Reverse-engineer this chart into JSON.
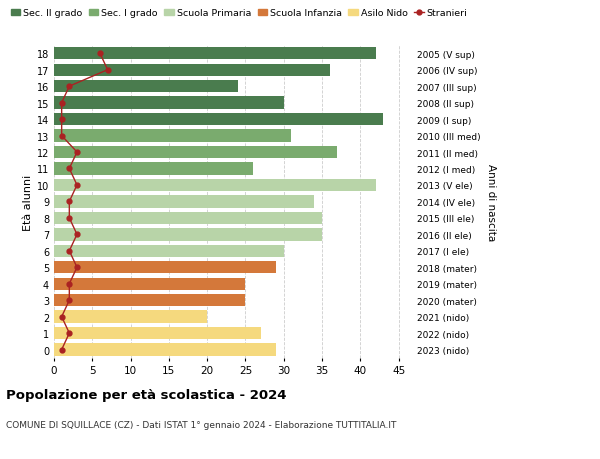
{
  "ages": [
    18,
    17,
    16,
    15,
    14,
    13,
    12,
    11,
    10,
    9,
    8,
    7,
    6,
    5,
    4,
    3,
    2,
    1,
    0
  ],
  "right_labels": [
    "2005 (V sup)",
    "2006 (IV sup)",
    "2007 (III sup)",
    "2008 (II sup)",
    "2009 (I sup)",
    "2010 (III med)",
    "2011 (II med)",
    "2012 (I med)",
    "2013 (V ele)",
    "2014 (IV ele)",
    "2015 (III ele)",
    "2016 (II ele)",
    "2017 (I ele)",
    "2018 (mater)",
    "2019 (mater)",
    "2020 (mater)",
    "2021 (nido)",
    "2022 (nido)",
    "2023 (nido)"
  ],
  "bar_values": [
    42,
    36,
    24,
    30,
    43,
    31,
    37,
    26,
    42,
    34,
    35,
    35,
    30,
    29,
    25,
    25,
    20,
    27,
    29
  ],
  "bar_colors": [
    "#4a7c4e",
    "#4a7c4e",
    "#4a7c4e",
    "#4a7c4e",
    "#4a7c4e",
    "#7aab6e",
    "#7aab6e",
    "#7aab6e",
    "#b8d4a8",
    "#b8d4a8",
    "#b8d4a8",
    "#b8d4a8",
    "#b8d4a8",
    "#d4783a",
    "#d4783a",
    "#d4783a",
    "#f5d97e",
    "#f5d97e",
    "#f5d97e"
  ],
  "stranieri_values": [
    6,
    7,
    2,
    1,
    1,
    1,
    3,
    2,
    3,
    2,
    2,
    3,
    2,
    3,
    2,
    2,
    1,
    2,
    1
  ],
  "legend_labels": [
    "Sec. II grado",
    "Sec. I grado",
    "Scuola Primaria",
    "Scuola Infanzia",
    "Asilo Nido",
    "Stranieri"
  ],
  "legend_colors": [
    "#4a7c4e",
    "#7aab6e",
    "#b8d4a8",
    "#d4783a",
    "#f5d97e",
    "#aa2222"
  ],
  "title": "Popolazione per età scolastica - 2024",
  "subtitle": "COMUNE DI SQUILLACE (CZ) - Dati ISTAT 1° gennaio 2024 - Elaborazione TUTTITALIA.IT",
  "ylabel_left": "Età alunni",
  "ylabel_right": "Anni di nascita",
  "xlim": [
    0,
    47
  ],
  "xticks": [
    0,
    5,
    10,
    15,
    20,
    25,
    30,
    35,
    40,
    45
  ],
  "grid_color": "#cccccc",
  "bar_height": 0.75,
  "bg_color": "#ffffff"
}
